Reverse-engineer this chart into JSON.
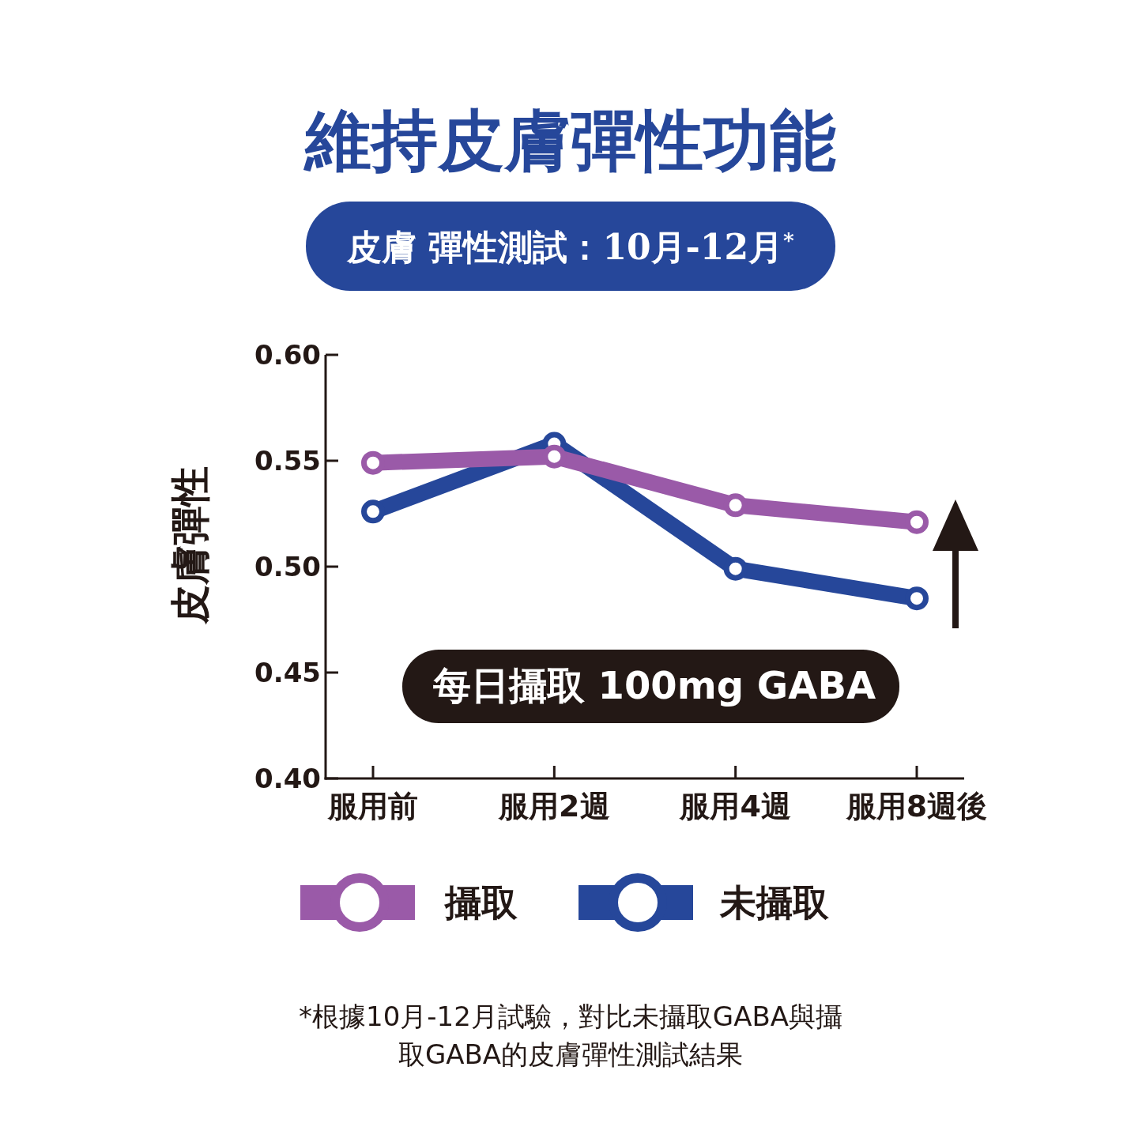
{
  "chart_data": {
    "type": "line",
    "title": "維持皮膚彈性功能",
    "subtitle": "皮膚 彈性測試：10月-12月$^{*}$",
    "ylabel": "皮膚彈性",
    "annotations": [
      "每日攝取 100mg GABA",
      "*根據10月-12月試驗，對比未攝取GABA與攝取GABA的皮膚彈性測試結果"
    ],
    "categories": [
      "服用前",
      "服用2週",
      "服用4週",
      "服用8週後"
    ],
    "ylim": [
      0.4,
      0.6
    ],
    "yticks": [
      {
        "value": 0.4,
        "label": "0.40"
      },
      {
        "value": 0.45,
        "label": "0.45"
      },
      {
        "value": 0.5,
        "label": "0.50"
      },
      {
        "value": 0.55,
        "label": "0.55"
      },
      {
        "value": 0.6,
        "label": "0.60"
      }
    ],
    "series": [
      {
        "name": "未攝取",
        "color": "#26479a",
        "values": [
          0.526,
          0.558,
          0.499,
          0.485
        ]
      },
      {
        "name": "攝取",
        "color": "#9a5aa8",
        "values": [
          0.549,
          0.552,
          0.529,
          0.521
        ]
      }
    ],
    "marker": "circle",
    "line_style": "solid",
    "grid": false,
    "legend": "bottom"
  }
}
